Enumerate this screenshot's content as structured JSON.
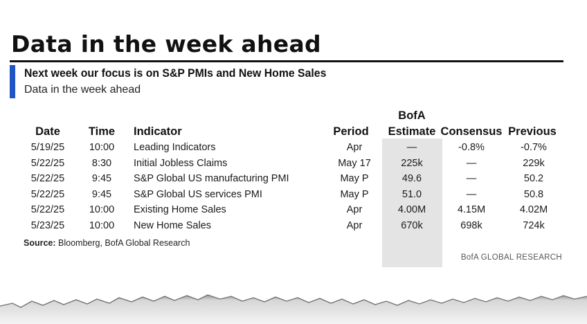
{
  "title": "Data in the week ahead",
  "subhead": "Next week our focus is on S&P PMIs and New Home Sales",
  "subtitle": "Data in the week ahead",
  "table": {
    "headers": {
      "date": "Date",
      "time": "Time",
      "indicator": "Indicator",
      "period": "Period",
      "estimate_line1": "BofA",
      "estimate_line2": "Estimate",
      "consensus": "Consensus",
      "previous": "Previous"
    },
    "rows": [
      {
        "date": "5/19/25",
        "time": "10:00",
        "indicator": "Leading Indicators",
        "period": "Apr",
        "estimate": "—",
        "consensus": "-0.8%",
        "previous": "-0.7%"
      },
      {
        "date": "5/22/25",
        "time": "8:30",
        "indicator": "Initial Jobless Claims",
        "period": "May 17",
        "estimate": "225k",
        "consensus": "—",
        "previous": "229k"
      },
      {
        "date": "5/22/25",
        "time": "9:45",
        "indicator": "S&P Global US manufacturing PMI",
        "period": "May P",
        "estimate": "49.6",
        "consensus": "—",
        "previous": "50.2"
      },
      {
        "date": "5/22/25",
        "time": "9:45",
        "indicator": "S&P Global US services PMI",
        "period": "May P",
        "estimate": "51.0",
        "consensus": "—",
        "previous": "50.8"
      },
      {
        "date": "5/22/25",
        "time": "10:00",
        "indicator": "Existing Home Sales",
        "period": "Apr",
        "estimate": "4.00M",
        "consensus": "4.15M",
        "previous": "4.02M"
      },
      {
        "date": "5/23/25",
        "time": "10:00",
        "indicator": "New Home Sales",
        "period": "Apr",
        "estimate": "670k",
        "consensus": "698k",
        "previous": "724k"
      }
    ]
  },
  "source": {
    "label": "Source:",
    "text": "Bloomberg, BofA Global Research"
  },
  "brand": "BofA GLOBAL RESEARCH",
  "colors": {
    "accent": "#1f55c4",
    "estimate_shade": "#e4e4e4",
    "text": "#1a1a1a"
  }
}
